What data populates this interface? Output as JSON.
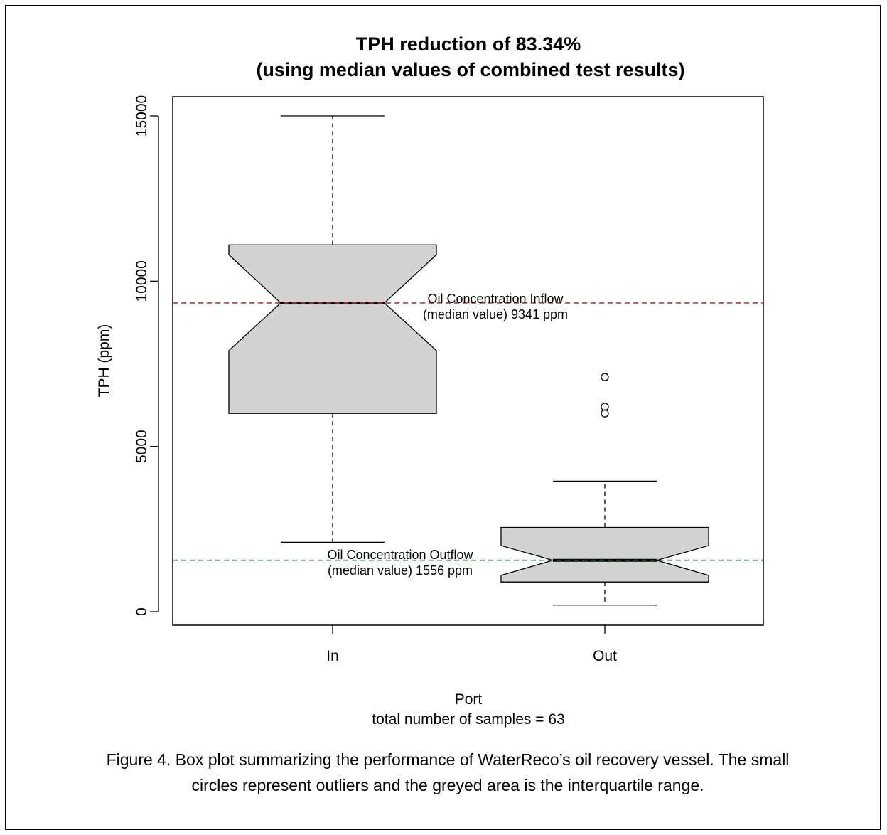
{
  "chart_data": {
    "type": "box",
    "title": [
      "TPH reduction of 83.34%",
      "(using median values of combined test results)"
    ],
    "ylabel": "TPH (ppm)",
    "xlabel": "Port",
    "sub_xlabel": "total number of samples = 63",
    "ylim": [
      -400,
      15600
    ],
    "yticks": [
      0,
      5000,
      10000,
      15000
    ],
    "yticklabels": [
      "0",
      "5000",
      "10000",
      "15000"
    ],
    "categories": [
      "In",
      "Out"
    ],
    "notched": true,
    "box_color": "#d3d3d3",
    "boxes": [
      {
        "name": "In",
        "whisker_low": 2100,
        "q1": 6000,
        "notch_low": 7900,
        "median": 9341,
        "notch_high": 10800,
        "q3": 11100,
        "whisker_high": 15000,
        "outliers": []
      },
      {
        "name": "Out",
        "whisker_low": 200,
        "q1": 900,
        "notch_low": 1100,
        "median": 1556,
        "notch_high": 2000,
        "q3": 2550,
        "whisker_high": 3950,
        "outliers": [
          6000,
          6200,
          7100
        ]
      }
    ],
    "reference_lines": [
      {
        "value": 9341,
        "color": "#d62728",
        "style": "dashed",
        "label_lines": [
          "Oil Concentration Inflow",
          "(median value) 9341 ppm"
        ]
      },
      {
        "value": 1556,
        "color": "#2e7d32",
        "style": "dashed",
        "label_lines": [
          "Oil Concentration Outflow",
          "(median value) 1556 ppm"
        ]
      }
    ]
  },
  "caption": {
    "line1": "Figure 4.  Box plot summarizing the performance of WaterReco’s oil recovery vessel. The small",
    "line2": "circles represent outliers and the greyed area is the interquartile range."
  }
}
